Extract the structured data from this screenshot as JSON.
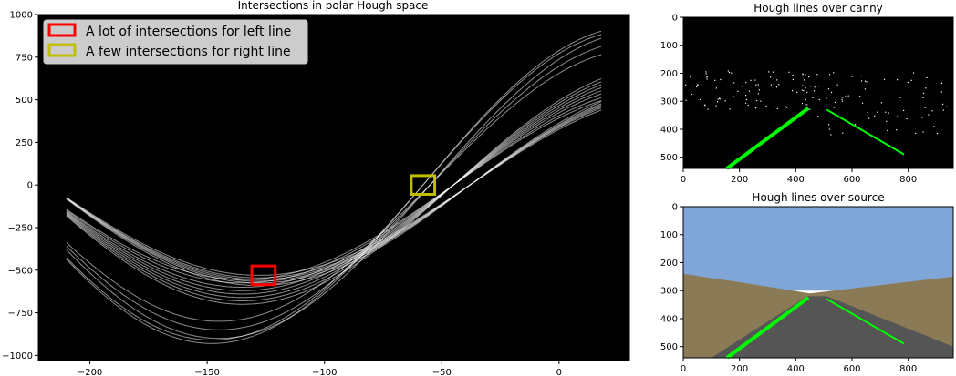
{
  "chart_data": [
    {
      "type": "line",
      "title": "Intersections in polar Hough space",
      "xlabel": "",
      "ylabel": "",
      "xlim": [
        -222,
        30
      ],
      "ylim": [
        -1030,
        1000
      ],
      "xticks": [
        -200,
        -150,
        -100,
        -50,
        0
      ],
      "yticks": [
        1000,
        750,
        500,
        250,
        0,
        -250,
        -500,
        -750,
        -1000
      ],
      "grid": false,
      "background": "#000000",
      "curve_color": "#ffffff",
      "theta_range": [
        -210,
        18
      ],
      "curve_families": [
        {
          "rho_amplitudes": [
            530,
            545,
            555,
            565,
            575,
            590
          ],
          "theta_peak": -128
        },
        {
          "rho_amplitudes": [
            555,
            575,
            600,
            620,
            640,
            660,
            680,
            700
          ],
          "theta_peak": -135
        },
        {
          "rho_amplitudes": [
            800,
            850,
            900
          ],
          "theta_peak": -145
        },
        {
          "rho_amplitudes": [
            910,
            930
          ],
          "theta_peak": -148
        }
      ],
      "legend_position": "upper-left",
      "legend": [
        {
          "label": "A lot of intersections for left line",
          "color": "#ff0000"
        },
        {
          "label": "A few intersections for right line",
          "color": "#bfbf00"
        }
      ],
      "annotations": [
        {
          "label_ref": 0,
          "theta": -126,
          "rho": -530,
          "half_width": [
            5,
            55
          ]
        },
        {
          "label_ref": 1,
          "theta": -58,
          "rho": 0,
          "half_width": [
            5,
            55
          ]
        }
      ]
    },
    {
      "type": "image",
      "title": "Hough lines over canny",
      "xticks": [
        0,
        200,
        400,
        600,
        800
      ],
      "yticks": [
        0,
        100,
        200,
        300,
        400,
        500
      ],
      "xlim": [
        0,
        960
      ],
      "ylim": [
        540,
        0
      ],
      "background": "#000000",
      "line_color": "#00ff00",
      "detected_lines": [
        {
          "x1": 155,
          "y1": 540,
          "x2": 445,
          "y2": 325
        },
        {
          "x1": 510,
          "y1": 330,
          "x2": 785,
          "y2": 490
        }
      ]
    },
    {
      "type": "image",
      "title": "Hough lines over source",
      "xticks": [
        0,
        200,
        400,
        600,
        800
      ],
      "yticks": [
        0,
        100,
        200,
        300,
        400,
        500
      ],
      "xlim": [
        0,
        960
      ],
      "ylim": [
        540,
        0
      ],
      "sky_color": "#7fa6d6",
      "road_color": "#555555",
      "hill_color": "#8a7a55",
      "line_color": "#00ff00",
      "detected_lines": [
        {
          "x1": 155,
          "y1": 540,
          "x2": 445,
          "y2": 325
        },
        {
          "x1": 510,
          "y1": 330,
          "x2": 785,
          "y2": 490
        }
      ]
    }
  ]
}
